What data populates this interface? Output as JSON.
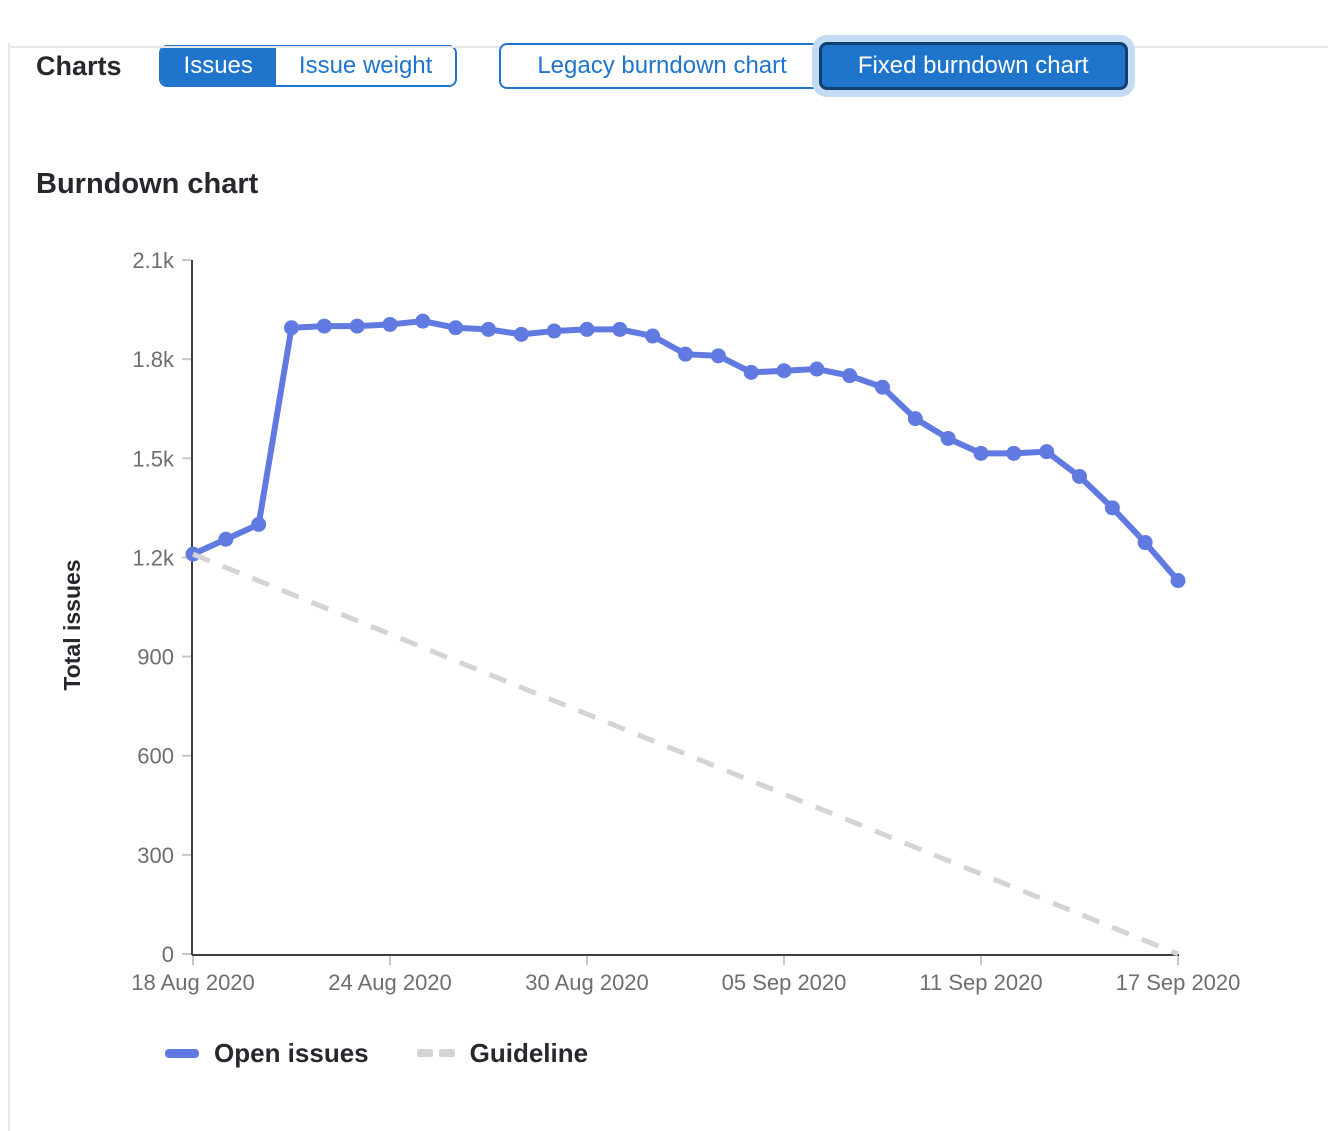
{
  "header": {
    "charts_label": "Charts",
    "metric_toggle": {
      "options": [
        "Issues",
        "Issue weight"
      ],
      "selected": "Issues"
    },
    "chart_type_toggle": {
      "options": [
        "Legacy burndown chart",
        "Fixed burndown chart"
      ],
      "selected": "Fixed burndown chart"
    }
  },
  "colors": {
    "accent_blue": "#1f75cb",
    "selected_focus_ring": "#10406f",
    "focus_halo": "#c3dcf3",
    "series_blue": "#617ae2",
    "guideline_gray": "#d4d4d4",
    "axis_line": "#3f3f3f",
    "tick_mark": "#c7c7c7",
    "tick_text": "#6e6e6e",
    "text_dark": "#28272d"
  },
  "chart_data": {
    "type": "line",
    "title": "Burndown chart",
    "xlabel": "",
    "ylabel": "Total issues",
    "ylim": [
      0,
      2100
    ],
    "x_range_days": 30,
    "grid": false,
    "legend_position": "bottom-left",
    "y_ticks": [
      {
        "value": 0,
        "label": "0"
      },
      {
        "value": 300,
        "label": "300"
      },
      {
        "value": 600,
        "label": "600"
      },
      {
        "value": 900,
        "label": "900"
      },
      {
        "value": 1200,
        "label": "1.2k"
      },
      {
        "value": 1500,
        "label": "1.5k"
      },
      {
        "value": 1800,
        "label": "1.8k"
      },
      {
        "value": 2100,
        "label": "2.1k"
      }
    ],
    "x_ticks": [
      {
        "day": 0,
        "label": "18 Aug 2020"
      },
      {
        "day": 6,
        "label": "24 Aug 2020"
      },
      {
        "day": 12,
        "label": "30 Aug 2020"
      },
      {
        "day": 18,
        "label": "05 Sep 2020"
      },
      {
        "day": 24,
        "label": "11 Sep 2020"
      },
      {
        "day": 30,
        "label": "17 Sep 2020"
      }
    ],
    "series": [
      {
        "name": "Open issues",
        "style": "solid",
        "color": "#617ae2",
        "show_points": true,
        "days": [
          0,
          1,
          2,
          3,
          4,
          5,
          6,
          7,
          8,
          9,
          10,
          11,
          12,
          13,
          14,
          15,
          16,
          17,
          18,
          19,
          20,
          21,
          22,
          23,
          24,
          25,
          26,
          27,
          28,
          29,
          30
        ],
        "values": [
          1210,
          1255,
          1300,
          1895,
          1900,
          1900,
          1905,
          1915,
          1895,
          1890,
          1875,
          1885,
          1890,
          1890,
          1870,
          1815,
          1810,
          1760,
          1765,
          1770,
          1750,
          1715,
          1620,
          1560,
          1515,
          1515,
          1520,
          1445,
          1350,
          1245,
          1130
        ]
      },
      {
        "name": "Guideline",
        "style": "dashed",
        "color": "#d4d4d4",
        "show_points": false,
        "days": [
          0,
          30
        ],
        "values": [
          1210,
          0
        ]
      }
    ],
    "legend": [
      {
        "label": "Open issues",
        "swatch": "solid"
      },
      {
        "label": "Guideline",
        "swatch": "dashed"
      }
    ]
  }
}
